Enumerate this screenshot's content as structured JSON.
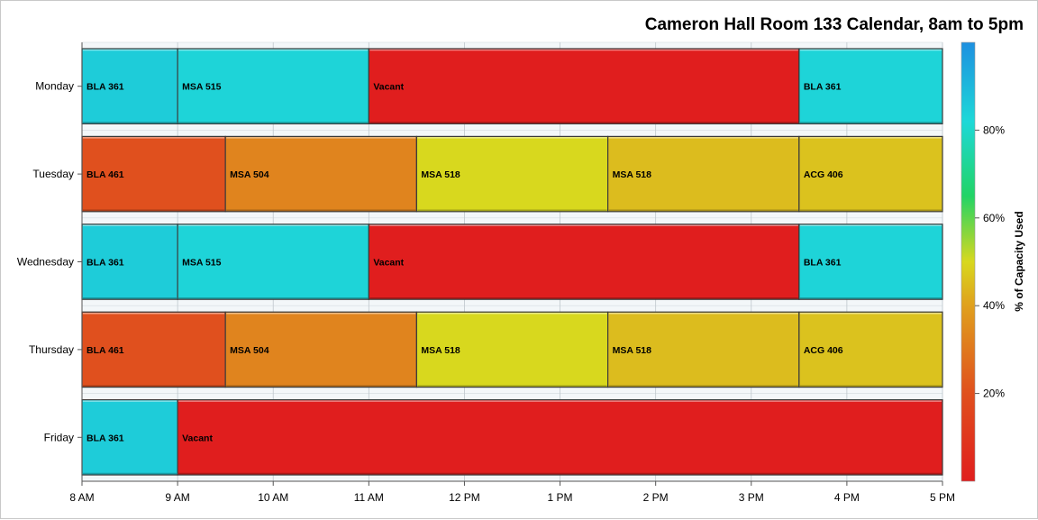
{
  "chart_data": {
    "type": "bar",
    "orientation": "horizontal-timeline",
    "title": "Cameron Hall Room 133 Calendar, 8am to 5pm",
    "x_axis": {
      "min": 8,
      "max": 17,
      "ticks": [
        {
          "value": 8,
          "label": "8 AM"
        },
        {
          "value": 9,
          "label": "9 AM"
        },
        {
          "value": 10,
          "label": "10 AM"
        },
        {
          "value": 11,
          "label": "11 AM"
        },
        {
          "value": 12,
          "label": "12 PM"
        },
        {
          "value": 13,
          "label": "1 PM"
        },
        {
          "value": 14,
          "label": "2 PM"
        },
        {
          "value": 15,
          "label": "3 PM"
        },
        {
          "value": 16,
          "label": "4 PM"
        },
        {
          "value": 17,
          "label": "5 PM"
        }
      ],
      "grid": true
    },
    "categories": [
      "Monday",
      "Tuesday",
      "Wednesday",
      "Thursday",
      "Friday"
    ],
    "series": [
      {
        "day": "Monday",
        "bookings": [
          {
            "label": "BLA 361",
            "start": 8,
            "end": 9,
            "capacity": 85
          },
          {
            "label": "MSA 515",
            "start": 9,
            "end": 11,
            "capacity": 83
          },
          {
            "label": "Vacant",
            "start": 11,
            "end": 15.5,
            "capacity": 0
          },
          {
            "label": "BLA 361",
            "start": 15.5,
            "end": 17,
            "capacity": 83
          }
        ]
      },
      {
        "day": "Tuesday",
        "bookings": [
          {
            "label": "BLA 461",
            "start": 8,
            "end": 9.5,
            "capacity": 20
          },
          {
            "label": "MSA 504",
            "start": 9.5,
            "end": 11.5,
            "capacity": 33
          },
          {
            "label": "MSA 518",
            "start": 11.5,
            "end": 13.5,
            "capacity": 50
          },
          {
            "label": "MSA 518",
            "start": 13.5,
            "end": 15.5,
            "capacity": 45
          },
          {
            "label": "ACG 406",
            "start": 15.5,
            "end": 17,
            "capacity": 46
          }
        ]
      },
      {
        "day": "Wednesday",
        "bookings": [
          {
            "label": "BLA 361",
            "start": 8,
            "end": 9,
            "capacity": 85
          },
          {
            "label": "MSA 515",
            "start": 9,
            "end": 11,
            "capacity": 83
          },
          {
            "label": "Vacant",
            "start": 11,
            "end": 15.5,
            "capacity": 0
          },
          {
            "label": "BLA 361",
            "start": 15.5,
            "end": 17,
            "capacity": 83
          }
        ]
      },
      {
        "day": "Thursday",
        "bookings": [
          {
            "label": "BLA 461",
            "start": 8,
            "end": 9.5,
            "capacity": 20
          },
          {
            "label": "MSA 504",
            "start": 9.5,
            "end": 11.5,
            "capacity": 33
          },
          {
            "label": "MSA 518",
            "start": 11.5,
            "end": 13.5,
            "capacity": 50
          },
          {
            "label": "MSA 518",
            "start": 13.5,
            "end": 15.5,
            "capacity": 45
          },
          {
            "label": "ACG 406",
            "start": 15.5,
            "end": 17,
            "capacity": 46
          }
        ]
      },
      {
        "day": "Friday",
        "bookings": [
          {
            "label": "BLA 361",
            "start": 8,
            "end": 9,
            "capacity": 85
          },
          {
            "label": "Vacant",
            "start": 9,
            "end": 17,
            "capacity": 0
          }
        ]
      }
    ],
    "colorbar": {
      "label": "% of Capacity Used",
      "min": 0,
      "max": 100,
      "ticks": [
        {
          "value": 20,
          "label": "20%"
        },
        {
          "value": 40,
          "label": "40%"
        },
        {
          "value": 60,
          "label": "60%"
        },
        {
          "value": 80,
          "label": "80%"
        }
      ],
      "placement": "right",
      "colors": [
        "#e01e1e",
        "#e06a1e",
        "#e0b01e",
        "#d8d81e",
        "#22d466",
        "#1ed8d8",
        "#1e90e0"
      ]
    }
  }
}
